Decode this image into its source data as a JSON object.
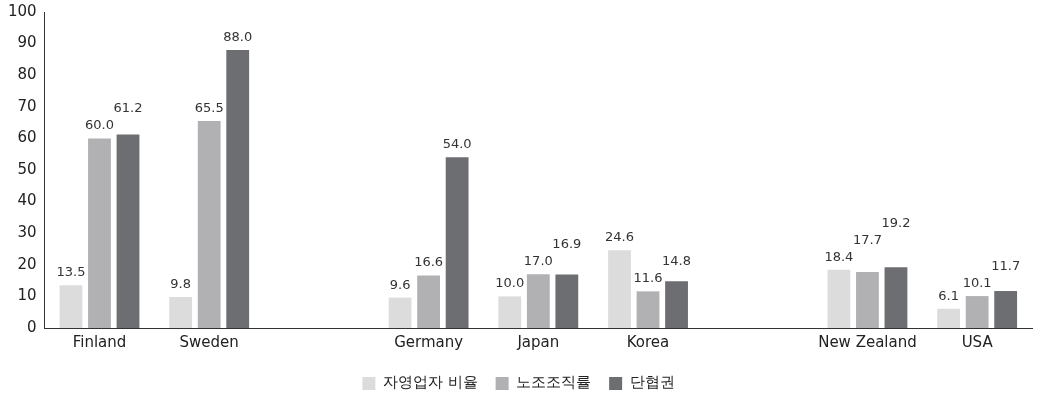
{
  "chart_data": {
    "type": "bar",
    "categories": [
      "Finland",
      "Sweden",
      null,
      "Germany",
      "Japan",
      "Korea",
      null,
      "New Zealand",
      "USA"
    ],
    "series": [
      {
        "name": "자영업자 비율",
        "color": "#dcdcdd",
        "values": [
          13.5,
          9.8,
          null,
          9.6,
          10.0,
          24.6,
          null,
          18.4,
          6.1
        ],
        "value_labels": [
          "13.5",
          "9.8",
          null,
          "9.6",
          "10.0",
          "24.6",
          null,
          "18.4",
          "6.1"
        ]
      },
      {
        "name": "노조조직률",
        "color": "#b1b1b3",
        "values": [
          60.0,
          65.5,
          null,
          16.6,
          17.0,
          11.6,
          null,
          17.7,
          10.1
        ],
        "value_labels": [
          "60.0",
          "65.5",
          null,
          "16.6",
          "17.0",
          "11.6",
          null,
          "17.7",
          "10.1"
        ]
      },
      {
        "name": "단협권",
        "color": "#6d6e71",
        "values": [
          61.2,
          88.0,
          null,
          54.0,
          16.9,
          14.8,
          null,
          19.2,
          11.7
        ],
        "value_labels": [
          "61.2",
          "88.0",
          null,
          "54.0",
          "16.9",
          "14.8",
          null,
          "19.2",
          "11.7"
        ]
      }
    ],
    "ylim": [
      0,
      100
    ],
    "yticks": [
      0,
      10,
      20,
      30,
      40,
      50,
      60,
      70,
      80,
      90,
      100
    ],
    "grid": false,
    "legend": "bottom"
  }
}
